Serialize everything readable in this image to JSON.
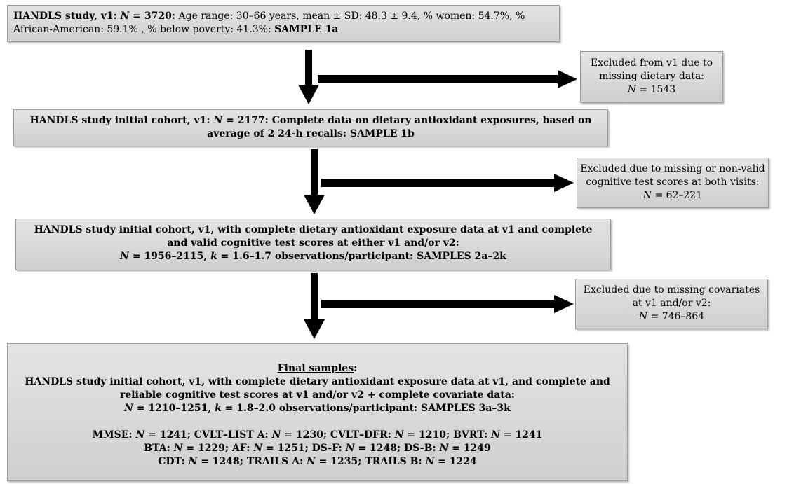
{
  "box1": {
    "p1": "HANDLS study, v1: ",
    "n_label": "N",
    "n_val": " = 3720:",
    "rest1": " Age range: 30–66 years, mean ± SD: 48.3 ± 9.4, % women: 54.7%, %",
    "rest2": "African-American: 59.1% , % below poverty: 41.3%: ",
    "sample": "SAMPLE 1a"
  },
  "ex1": {
    "l1": "Excluded from v1 due to",
    "l2": "missing dietary data:",
    "n_label": "N",
    "n_val": " = 1543"
  },
  "box2": {
    "p1": "HANDLS study initial cohort, v1: ",
    "n_label": "N",
    "l1_rest": " = 2177: Complete data on dietary antioxidant exposures, based on",
    "l2": "average of 2 24-h recalls: SAMPLE 1b"
  },
  "ex2": {
    "l1": "Excluded due to missing or non-valid",
    "l2": "cognitive test scores at both visits:",
    "n_label": "N",
    "n_val": " = 62–221"
  },
  "box3": {
    "l1": "HANDLS study initial cohort, v1, with complete dietary antioxidant exposure data at v1 and complete",
    "l2": "and valid cognitive test scores at either v1 and/or v2:",
    "n_label": "N",
    "l3a": " = 1956–2115, ",
    "k_label": "k",
    "l3b": " = 1.6–1.7 observations/participant: SAMPLES 2a–2k"
  },
  "ex3": {
    "l1": "Excluded due to missing covariates",
    "l2": "at v1 and/or v2:",
    "n_label": "N",
    "n_val": " = 746–864"
  },
  "final": {
    "heading": "Final samples",
    "colon": ":",
    "l1": "HANDLS study initial cohort, v1, with complete dietary antioxidant exposure data at v1, and complete and",
    "l2": "reliable cognitive test scores at v1 and/or v2 + complete covariate data:",
    "n_label": "N",
    "l3a": " = 1210–1251, ",
    "k_label": "k",
    "l3b": " = 1.8–2.0 observations/participant: SAMPLES 3a–3k",
    "tests": [
      {
        "label": "MMSE: ",
        "n": "N",
        "v": " = 1241; "
      },
      {
        "label": "CVLT–LIST A:  ",
        "n": "N",
        "v": " = 1230; "
      },
      {
        "label": "CVLT–DFR: ",
        "n": "N",
        "v": " = 1210; "
      },
      {
        "label": "BVRT: ",
        "n": "N",
        "v": " = 1241"
      },
      {
        "label": "BTA: ",
        "n": "N",
        "v": " = 1229;  "
      },
      {
        "label": "AF: ",
        "n": "N",
        "v": " = 1251; "
      },
      {
        "label": "DS-F: ",
        "n": "N",
        "v": " = 1248;  "
      },
      {
        "label": "DS-B: ",
        "n": "N",
        "v": " = 1249"
      },
      {
        "label": "CDT: ",
        "n": "N",
        "v": " = 1248; "
      },
      {
        "label": "TRAILS A:  ",
        "n": "N",
        "v": " = 1235; "
      },
      {
        "label": "TRAILS B: ",
        "n": "N",
        "v": " = 1224"
      }
    ]
  }
}
